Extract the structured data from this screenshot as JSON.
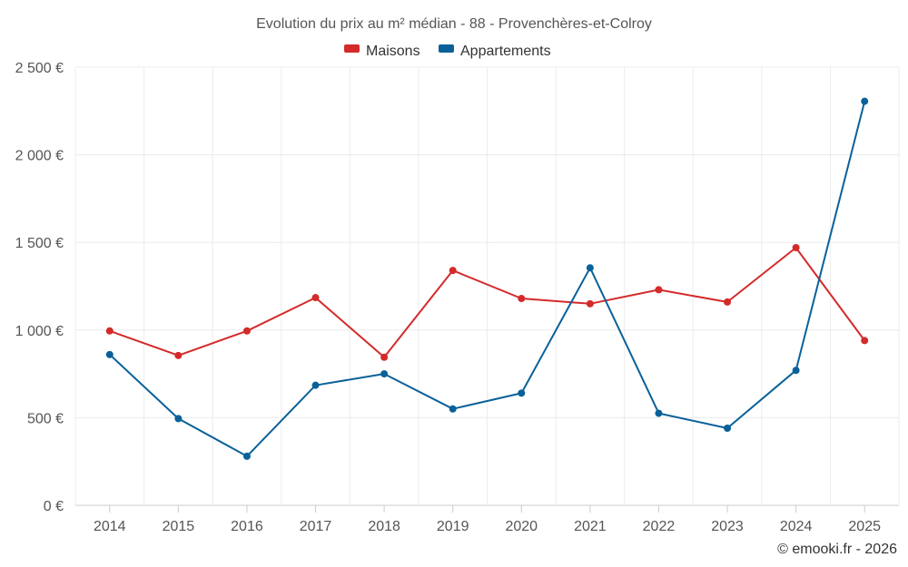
{
  "chart_data": {
    "type": "line",
    "title": "Evolution du prix au m² médian - 88 - Provenchères-et-Colroy",
    "categories": [
      "2014",
      "2015",
      "2016",
      "2017",
      "2018",
      "2019",
      "2020",
      "2021",
      "2022",
      "2023",
      "2024",
      "2025"
    ],
    "series": [
      {
        "name": "Maisons",
        "color": "#d42a2a",
        "values": [
          995,
          855,
          995,
          1185,
          845,
          1340,
          1180,
          1150,
          1230,
          1160,
          1470,
          940
        ]
      },
      {
        "name": "Appartements",
        "color": "#0a6199",
        "values": [
          860,
          495,
          280,
          685,
          750,
          550,
          640,
          1355,
          525,
          440,
          770,
          2305
        ]
      }
    ],
    "y_ticks": [
      "0 €",
      "500 €",
      "1 000 €",
      "1 500 €",
      "2 000 €",
      "2 500 €"
    ],
    "ylim": [
      0,
      2500
    ],
    "xlabel": "",
    "ylabel": "",
    "legend_position": "top-center",
    "grid": true
  },
  "credit": "© emooki.fr - 2026"
}
